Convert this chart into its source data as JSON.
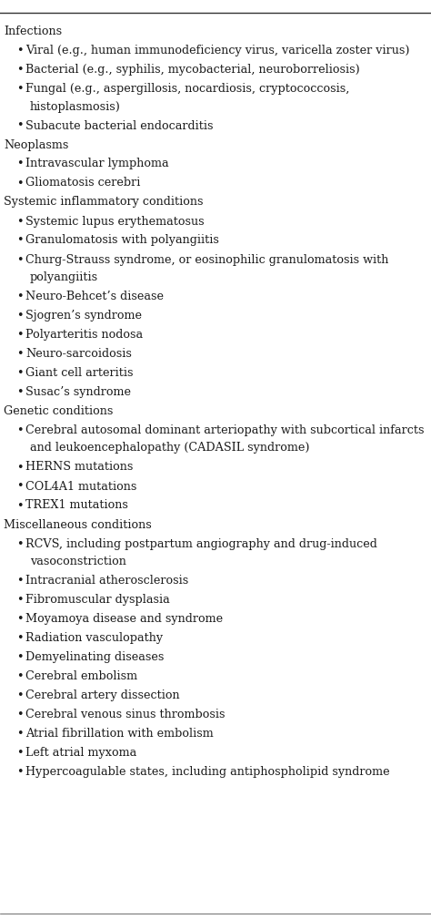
{
  "bg_color": "#ffffff",
  "text_color": "#1a1a1a",
  "font_size": 9.2,
  "figsize": [
    4.74,
    10.09
  ],
  "dpi": 100,
  "entries": [
    {
      "type": "header",
      "text": "Infections"
    },
    {
      "type": "bullet1",
      "text": "Viral (e.g., human immunodeficiency virus, varicella zoster virus)"
    },
    {
      "type": "bullet1",
      "text": "Bacterial (e.g., syphilis, mycobacterial, neuroborreliosis)"
    },
    {
      "type": "bullet2",
      "text": "Fungal (e.g., aspergillosis, nocardiosis, cryptococcosis,",
      "cont": "histoplasmosis)"
    },
    {
      "type": "bullet1",
      "text": "Subacute bacterial endocarditis"
    },
    {
      "type": "header",
      "text": "Neoplasms"
    },
    {
      "type": "bullet1",
      "text": "Intravascular lymphoma"
    },
    {
      "type": "bullet1",
      "text": "Gliomatosis cerebri"
    },
    {
      "type": "header",
      "text": "Systemic inflammatory conditions"
    },
    {
      "type": "bullet1",
      "text": "Systemic lupus erythematosus"
    },
    {
      "type": "bullet1",
      "text": "Granulomatosis with polyangiitis"
    },
    {
      "type": "bullet2",
      "text": "Churg-Strauss syndrome, or eosinophilic granulomatosis with",
      "cont": "polyangiitis"
    },
    {
      "type": "bullet1",
      "text": "Neuro-Behcet’s disease"
    },
    {
      "type": "bullet1",
      "text": "Sjogren’s syndrome"
    },
    {
      "type": "bullet1",
      "text": "Polyarteritis nodosa"
    },
    {
      "type": "bullet1",
      "text": "Neuro-sarcoidosis"
    },
    {
      "type": "bullet1",
      "text": "Giant cell arteritis"
    },
    {
      "type": "bullet1",
      "text": "Susac’s syndrome"
    },
    {
      "type": "header",
      "text": "Genetic conditions"
    },
    {
      "type": "bullet2",
      "text": "Cerebral autosomal dominant arteriopathy with subcortical infarcts",
      "cont": "and leukoencephalopathy (CADASIL syndrome)"
    },
    {
      "type": "bullet1",
      "text": "HERNS mutations"
    },
    {
      "type": "bullet1",
      "text": "COL4A1 mutations"
    },
    {
      "type": "bullet1",
      "text": "TREX1 mutations"
    },
    {
      "type": "header",
      "text": "Miscellaneous conditions"
    },
    {
      "type": "bullet2",
      "text": "RCVS, including postpartum angiography and drug-induced",
      "cont": "vasoconstriction"
    },
    {
      "type": "bullet1",
      "text": "Intracranial atherosclerosis"
    },
    {
      "type": "bullet1",
      "text": "Fibromuscular dysplasia"
    },
    {
      "type": "bullet1",
      "text": "Moyamoya disease and syndrome"
    },
    {
      "type": "bullet1",
      "text": "Radiation vasculopathy"
    },
    {
      "type": "bullet1",
      "text": "Demyelinating diseases"
    },
    {
      "type": "bullet1",
      "text": "Cerebral embolism"
    },
    {
      "type": "bullet1",
      "text": "Cerebral artery dissection"
    },
    {
      "type": "bullet1",
      "text": "Cerebral venous sinus thrombosis"
    },
    {
      "type": "bullet1",
      "text": "Atrial fibrillation with embolism"
    },
    {
      "type": "bullet1",
      "text": "Left atrial myxoma"
    },
    {
      "type": "bullet1",
      "text": "Hypercoagulable states, including antiphospholipid syndrome"
    }
  ]
}
